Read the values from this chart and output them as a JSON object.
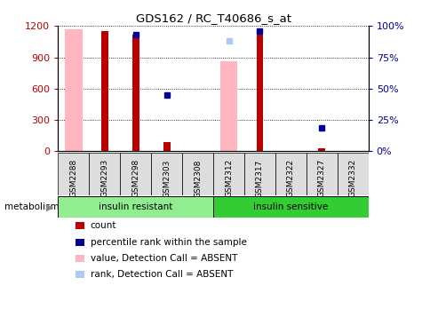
{
  "title": "GDS162 / RC_T40686_s_at",
  "samples": [
    "GSM2288",
    "GSM2293",
    "GSM2298",
    "GSM2303",
    "GSM2308",
    "GSM2312",
    "GSM2317",
    "GSM2322",
    "GSM2327",
    "GSM2332"
  ],
  "red_bars": [
    0,
    1150,
    1120,
    90,
    0,
    0,
    1160,
    0,
    30,
    0
  ],
  "blue_squares": [
    null,
    null,
    1120,
    540,
    null,
    null,
    1155,
    null,
    220,
    null
  ],
  "pink_bars": [
    1170,
    0,
    0,
    0,
    0,
    860,
    0,
    0,
    0,
    0
  ],
  "light_blue_sq": [
    null,
    null,
    null,
    null,
    null,
    1060,
    null,
    null,
    null,
    null
  ],
  "ylim_left": [
    0,
    1200
  ],
  "ylim_right": [
    0,
    100
  ],
  "yticks_left": [
    0,
    300,
    600,
    900,
    1200
  ],
  "yticks_right": [
    0,
    25,
    50,
    75,
    100
  ],
  "ytick_labels_right": [
    "0%",
    "25%",
    "50%",
    "75%",
    "100%"
  ],
  "red_color": "#BB0000",
  "blue_color": "#000099",
  "pink_color": "#FFB6C1",
  "light_blue_color": "#AACCEE",
  "group_resistant_color": "#90EE90",
  "group_sensitive_color": "#33CC33",
  "legend_items": [
    {
      "color": "#BB0000",
      "label": "count"
    },
    {
      "color": "#000099",
      "label": "percentile rank within the sample"
    },
    {
      "color": "#FFB6C1",
      "label": "value, Detection Call = ABSENT"
    },
    {
      "color": "#AACCEE",
      "label": "rank, Detection Call = ABSENT"
    }
  ]
}
